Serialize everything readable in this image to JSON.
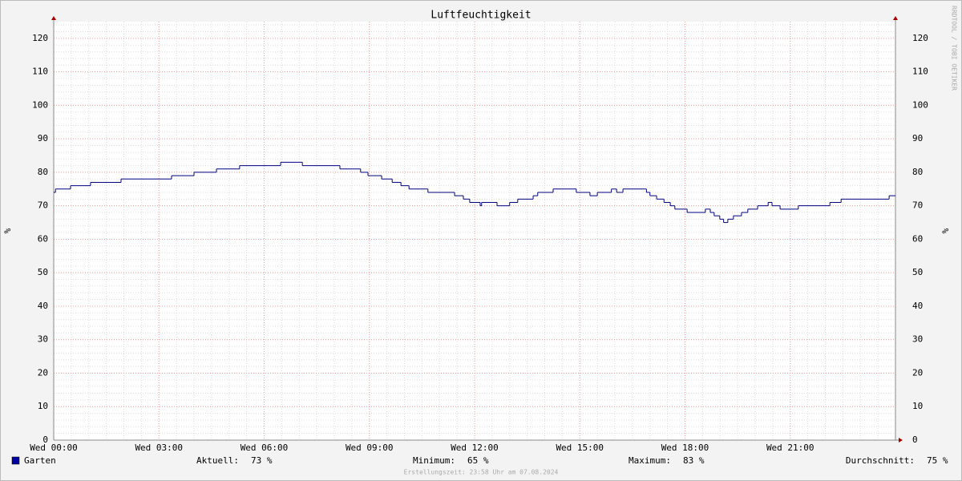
{
  "chart_data": {
    "type": "step",
    "title": "Luftfeuchtigkeit",
    "y_label": "%",
    "y2_label": "%",
    "watermark": "RRDTOOL / TOBI OETIKER",
    "x": [
      0,
      0.05,
      0.48,
      1.05,
      1.92,
      3.36,
      4.0,
      4.64,
      5.3,
      6.47,
      7.09,
      8.16,
      8.75,
      8.96,
      9.35,
      9.65,
      9.9,
      10.13,
      10.67,
      11.43,
      11.68,
      11.86,
      12.16,
      12.2,
      12.64,
      13.0,
      13.23,
      13.67,
      13.8,
      14.24,
      14.9,
      15.29,
      15.5,
      15.9,
      16.05,
      16.23,
      16.9,
      17.0,
      17.19,
      17.4,
      17.58,
      17.71,
      18.06,
      18.58,
      18.72,
      18.83,
      18.99,
      19.1,
      19.22,
      19.38,
      19.61,
      19.79,
      20.07,
      20.37,
      20.48,
      20.71,
      21.23,
      22.13,
      22.45,
      23.82,
      24
    ],
    "series": [
      {
        "name": "Garten",
        "color": "#000080",
        "values": [
          74,
          75,
          76,
          77,
          78,
          79,
          80,
          81,
          82,
          83,
          82,
          81,
          80,
          79,
          78,
          77,
          76,
          75,
          74,
          73,
          72,
          71,
          70,
          71,
          70,
          71,
          72,
          73,
          74,
          75,
          74,
          73,
          74,
          75,
          74,
          75,
          74,
          73,
          72,
          71,
          70,
          69,
          68,
          69,
          68,
          67,
          66,
          65,
          66,
          67,
          68,
          69,
          70,
          71,
          70,
          69,
          70,
          71,
          72,
          73,
          73
        ]
      }
    ],
    "legend_color": "#0000a0",
    "xlim": [
      0,
      24
    ],
    "xticks": [
      {
        "value": 0,
        "label": "Wed 00:00"
      },
      {
        "value": 3,
        "label": "Wed 03:00"
      },
      {
        "value": 6,
        "label": "Wed 06:00"
      },
      {
        "value": 9,
        "label": "Wed 09:00"
      },
      {
        "value": 12,
        "label": "Wed 12:00"
      },
      {
        "value": 15,
        "label": "Wed 15:00"
      },
      {
        "value": 18,
        "label": "Wed 18:00"
      },
      {
        "value": 21,
        "label": "Wed 21:00"
      }
    ],
    "ylim": [
      0,
      125
    ],
    "yticks": [
      0,
      10,
      20,
      30,
      40,
      50,
      60,
      70,
      80,
      90,
      100,
      110,
      120
    ],
    "y2ticks": [
      0,
      10,
      20,
      30,
      40,
      50,
      60,
      70,
      80,
      90,
      100,
      110,
      120
    ],
    "grid": true,
    "stats": [
      {
        "label": "Aktuell:",
        "value": "73 %"
      },
      {
        "label": "Minimum:",
        "value": "65 %"
      },
      {
        "label": "Maximum:",
        "value": "83 %"
      },
      {
        "label": "Durchschnitt:",
        "value": "75 %"
      }
    ],
    "footer": "Erstellungszeit: 23:58 Uhr am 07.08.2024"
  }
}
